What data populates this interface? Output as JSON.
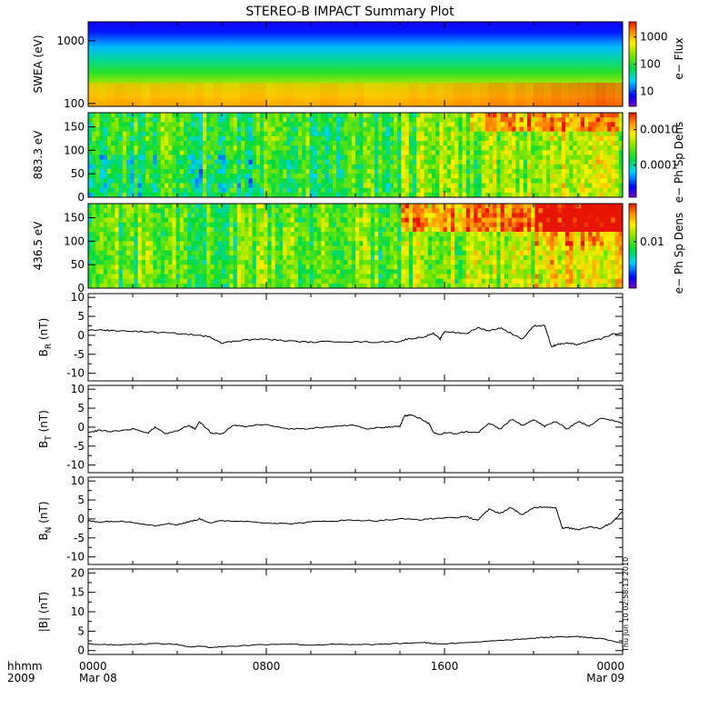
{
  "chart_data": {
    "type": "stacked-panels",
    "title": "STEREO-B IMPACT Summary Plot",
    "x_axis": {
      "label_lines": [
        "hhmm",
        "2009"
      ],
      "ticks": [
        {
          "hour": 0,
          "top": "0000",
          "bottom": "Mar 08"
        },
        {
          "hour": 8,
          "top": "0800",
          "bottom": ""
        },
        {
          "hour": 16,
          "top": "1600",
          "bottom": ""
        },
        {
          "hour": 24,
          "top": "0000",
          "bottom": "Mar 09"
        }
      ],
      "range_hours": [
        0,
        24
      ]
    },
    "timestamp": "Thu Jun 10 02:58:13 2010",
    "spectrograms": [
      {
        "ylabel": "SWEA (eV)",
        "yscale": "log",
        "ylim": [
          90,
          2000
        ],
        "yticks": [
          "1000",
          "100"
        ],
        "colorbar_label": "e− Flux",
        "colorbar_scale": "log",
        "colorbar_ticks": [
          "1000",
          "100",
          "10"
        ]
      },
      {
        "ylabel": "883.3 eV",
        "yscale": "linear",
        "ylim": [
          0,
          180
        ],
        "yticks": [
          "150",
          "100",
          "50",
          "0"
        ],
        "colorbar_label": "e− Ph Sp Dens",
        "colorbar_scale": "log",
        "colorbar_ticks": [
          "0.0010",
          "0.0001"
        ]
      },
      {
        "ylabel": "436.5 eV",
        "yscale": "linear",
        "ylim": [
          0,
          180
        ],
        "yticks": [
          "150",
          "100",
          "50",
          "0"
        ],
        "colorbar_label": "e− Ph Sp Dens",
        "colorbar_scale": "log",
        "colorbar_ticks": [
          "0.01"
        ]
      }
    ],
    "line_panels": [
      {
        "ylabel_main": "B",
        "ylabel_sub": "R",
        "ylabel_unit": "(nT)",
        "ylim": [
          -12,
          11
        ],
        "yticks": [
          "10",
          "5",
          "0",
          "-5",
          "-10"
        ],
        "series": {
          "hours": [
            0,
            0.5,
            1,
            2,
            3,
            4,
            5,
            5.5,
            6,
            6.5,
            7,
            8,
            9,
            10,
            11,
            12,
            13,
            14,
            14.3,
            15,
            15.5,
            15.8,
            16,
            17,
            17.5,
            18,
            18.5,
            19,
            19.5,
            20,
            20.5,
            20.8,
            21,
            21.5,
            22,
            22.5,
            23,
            23.5,
            24
          ],
          "values": [
            1.3,
            1.5,
            1.2,
            1.1,
            0.8,
            0.5,
            0,
            -0.5,
            -2,
            -1.6,
            -1.2,
            -1,
            -1.5,
            -1.8,
            -1.6,
            -1.7,
            -1.8,
            -1.6,
            -1,
            -0.5,
            0.5,
            -1,
            1,
            0.5,
            2,
            1.2,
            2,
            0.5,
            -1,
            2.5,
            2.6,
            -3,
            -2.5,
            -2,
            -2.5,
            -1.5,
            -1,
            0.2,
            0.5
          ]
        }
      },
      {
        "ylabel_main": "B",
        "ylabel_sub": "T",
        "ylabel_unit": "(nT)",
        "ylim": [
          -12,
          11
        ],
        "yticks": [
          "10",
          "5",
          "0",
          "-5",
          "-10"
        ],
        "series": {
          "hours": [
            0,
            0.5,
            1,
            2,
            2.7,
            3,
            3.5,
            4,
            4.5,
            4.8,
            5,
            5.5,
            6,
            6.5,
            7,
            8,
            9,
            10,
            11,
            12,
            12.5,
            13,
            13.5,
            14,
            14.2,
            14.5,
            15,
            15.3,
            15.5,
            15.8,
            16,
            16.5,
            17,
            17.5,
            18,
            18.5,
            19,
            19.5,
            20,
            20.5,
            21,
            21.5,
            22,
            22.5,
            23,
            23.5,
            24
          ],
          "values": [
            -1.5,
            -0.8,
            -1.2,
            -0.5,
            -1.5,
            0,
            -1.8,
            -1,
            0.5,
            -0.5,
            1.5,
            -1.5,
            -1.8,
            0.5,
            0.2,
            0.8,
            -0.5,
            -0.3,
            0.2,
            0.5,
            -0.5,
            -0.2,
            0,
            0.2,
            3,
            3.2,
            2,
            1,
            -1.5,
            -2,
            -1.5,
            -1.7,
            -1.2,
            -1.5,
            1,
            -0.5,
            2,
            0.5,
            2,
            0.2,
            1.5,
            -0.5,
            1.5,
            0.2,
            2.5,
            1.8,
            1
          ]
        }
      },
      {
        "ylabel_main": "B",
        "ylabel_sub": "N",
        "ylabel_unit": "(nT)",
        "ylim": [
          -12,
          11
        ],
        "yticks": [
          "10",
          "5",
          "0",
          "-5",
          "-10"
        ],
        "series": {
          "hours": [
            0,
            0.5,
            1,
            2,
            3,
            3.5,
            4,
            4.5,
            5,
            5.5,
            6,
            7,
            8,
            9,
            10,
            11,
            12,
            13,
            14,
            15,
            16,
            17,
            17.5,
            18,
            18.5,
            19,
            19.5,
            20,
            20.5,
            21,
            21.3,
            21.5,
            22,
            22.5,
            23,
            23.5,
            24
          ],
          "values": [
            -0.5,
            -0.8,
            -0.6,
            -0.8,
            -1.8,
            -1.2,
            -1.5,
            -0.8,
            0,
            -1,
            -0.5,
            -0.6,
            -1,
            -1.3,
            -0.8,
            -0.5,
            -0.3,
            -0.5,
            0,
            -0.2,
            0.3,
            0.5,
            -0.3,
            2.5,
            1.5,
            3,
            1,
            3,
            3.2,
            3,
            -2.5,
            -2.3,
            -2.8,
            -2,
            -2.5,
            -1,
            2
          ]
        }
      },
      {
        "ylabel_main": "|B|",
        "ylabel_sub": "",
        "ylabel_unit": "(nT)",
        "ylim": [
          -1,
          21
        ],
        "yticks": [
          "20",
          "15",
          "10",
          "5",
          "0"
        ],
        "series": {
          "hours": [
            0,
            1,
            2,
            3,
            4,
            4.5,
            5,
            5.5,
            6,
            7,
            8,
            9,
            10,
            11,
            12,
            13,
            14,
            15,
            15.5,
            16,
            17,
            18,
            19,
            20,
            20.5,
            21,
            22,
            22.5,
            23,
            24
          ],
          "values": [
            1.7,
            1.5,
            1.6,
            1.8,
            1.6,
            0.9,
            1.2,
            0.8,
            1,
            1.3,
            1.6,
            1.7,
            1.4,
            1.6,
            1.5,
            1.6,
            1.8,
            2.1,
            1.8,
            1.7,
            2,
            2.5,
            2.8,
            3.2,
            3.4,
            3.5,
            3.6,
            3.3,
            3.1,
            2
          ]
        }
      }
    ]
  }
}
